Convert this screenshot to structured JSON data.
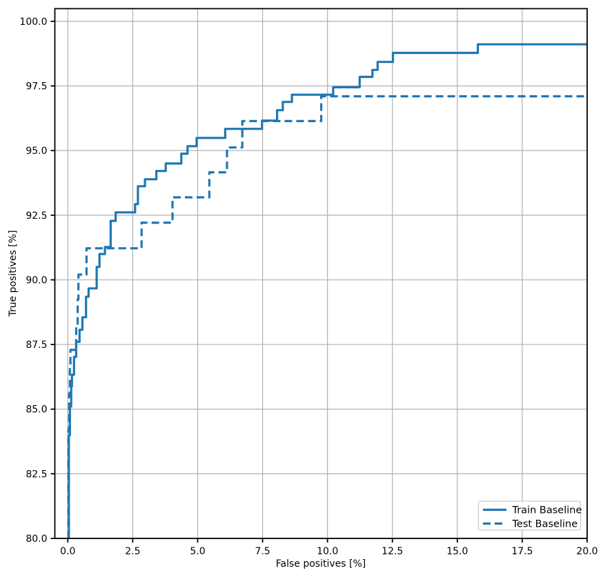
{
  "figure": {
    "background_color": "#ffffff"
  },
  "chart_data": {
    "type": "line",
    "subtype": "roc-step-curves",
    "title": "",
    "xlabel": "False positives [%]",
    "ylabel": "True positives [%]",
    "xlim": [
      -0.5,
      20.0
    ],
    "ylim": [
      80.0,
      100.49
    ],
    "xticks": [
      0.0,
      2.5,
      5.0,
      7.5,
      10.0,
      12.5,
      15.0,
      17.5,
      20.0
    ],
    "yticks": [
      80.0,
      82.5,
      85.0,
      87.5,
      90.0,
      92.5,
      95.0,
      97.5,
      100.0
    ],
    "grid": true,
    "grid_color": "#b0b0b0",
    "axes_edge_color": "#000000",
    "line_color": "#1f77b4",
    "legend_position": "lower right",
    "series": [
      {
        "name": "Train Baseline",
        "line_style": "solid",
        "color": "#1f77b4",
        "points": [
          [
            0.04,
            80.0
          ],
          [
            0.04,
            84.0
          ],
          [
            0.08,
            85.1
          ],
          [
            0.13,
            85.88
          ],
          [
            0.16,
            86.33
          ],
          [
            0.24,
            87.02
          ],
          [
            0.32,
            87.6
          ],
          [
            0.45,
            88.07
          ],
          [
            0.56,
            88.55
          ],
          [
            0.7,
            89.35
          ],
          [
            0.8,
            89.67
          ],
          [
            1.11,
            90.5
          ],
          [
            1.22,
            91.0
          ],
          [
            1.43,
            91.27
          ],
          [
            1.65,
            92.28
          ],
          [
            1.84,
            92.61
          ],
          [
            2.59,
            92.93
          ],
          [
            2.7,
            93.62
          ],
          [
            2.97,
            93.89
          ],
          [
            3.41,
            94.21
          ],
          [
            3.77,
            94.5
          ],
          [
            4.37,
            94.88
          ],
          [
            4.61,
            95.17
          ],
          [
            4.96,
            95.49
          ],
          [
            6.06,
            95.84
          ],
          [
            7.48,
            96.16
          ],
          [
            8.06,
            96.56
          ],
          [
            8.28,
            96.88
          ],
          [
            8.63,
            97.16
          ],
          [
            10.22,
            97.45
          ],
          [
            11.24,
            97.85
          ],
          [
            11.73,
            98.12
          ],
          [
            11.93,
            98.43
          ],
          [
            12.52,
            98.78
          ],
          [
            15.79,
            99.11
          ],
          [
            20.0,
            99.11
          ]
        ]
      },
      {
        "name": "Test Baseline",
        "line_style": "dashed",
        "color": "#1f77b4",
        "points": [
          [
            0.02,
            80.0
          ],
          [
            0.02,
            84.2
          ],
          [
            0.05,
            85.6
          ],
          [
            0.08,
            86.6
          ],
          [
            0.1,
            87.29
          ],
          [
            0.32,
            88.25
          ],
          [
            0.38,
            89.25
          ],
          [
            0.41,
            90.2
          ],
          [
            0.72,
            91.22
          ],
          [
            2.84,
            92.21
          ],
          [
            4.03,
            93.19
          ],
          [
            5.45,
            94.16
          ],
          [
            6.13,
            95.12
          ],
          [
            6.72,
            96.14
          ],
          [
            9.76,
            97.1
          ],
          [
            20.0,
            97.1
          ]
        ]
      }
    ]
  }
}
